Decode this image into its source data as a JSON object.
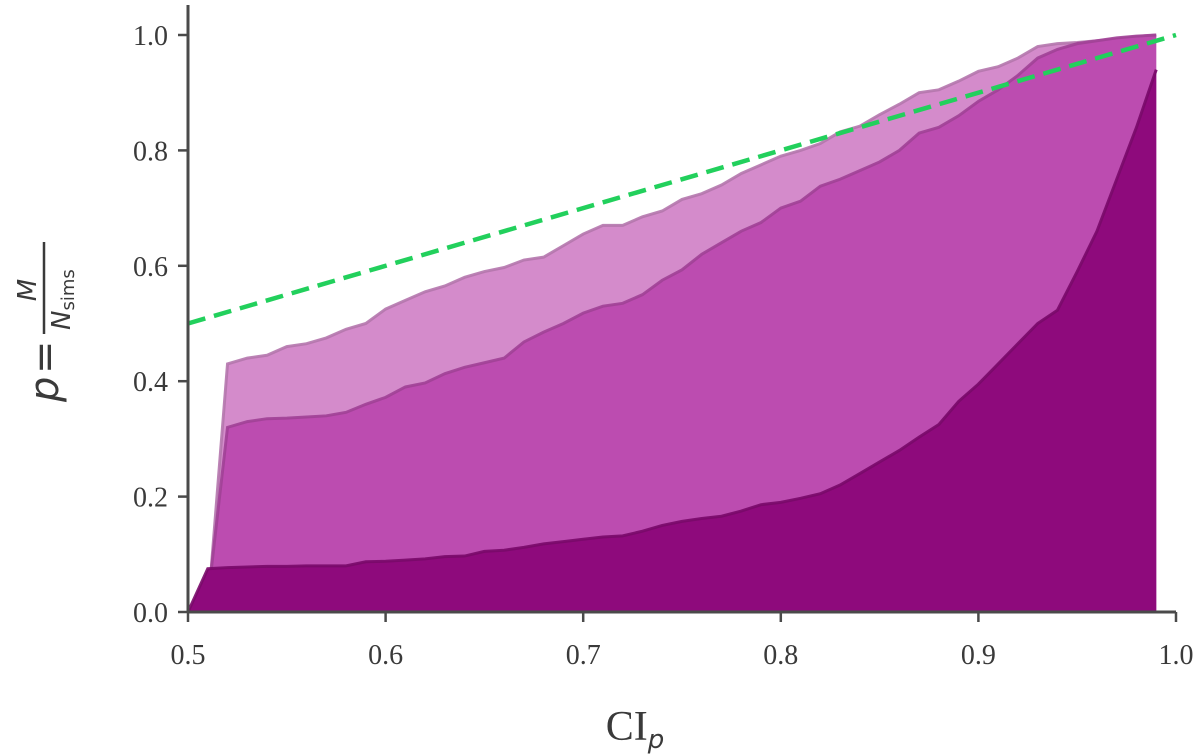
{
  "chart_data": {
    "type": "area",
    "xlabel": "CI",
    "xlabel_subscript": "p",
    "ylabel": {
      "lhs": "p",
      "equals": "=",
      "numerator": "M",
      "denominator": "N",
      "denominator_subscript": "sims"
    },
    "xlim": [
      0.5,
      1.0
    ],
    "ylim": [
      0.0,
      1.0
    ],
    "x_ticks": [
      "0.5",
      "0.6",
      "0.7",
      "0.8",
      "0.9",
      "1.0"
    ],
    "y_ticks": [
      "0.0",
      "0.2",
      "0.4",
      "0.6",
      "0.8",
      "1.0"
    ],
    "grid": false,
    "series": [
      {
        "color": "#d48bcb",
        "opacity": 1,
        "x": [
          0.51,
          0.52,
          0.53,
          0.54,
          0.55,
          0.56,
          0.57,
          0.58,
          0.59,
          0.6,
          0.61,
          0.62,
          0.63,
          0.64,
          0.65,
          0.66,
          0.67,
          0.68,
          0.69,
          0.7,
          0.71,
          0.72,
          0.73,
          0.74,
          0.75,
          0.76,
          0.77,
          0.78,
          0.79,
          0.8,
          0.81,
          0.82,
          0.83,
          0.84,
          0.85,
          0.86,
          0.87,
          0.88,
          0.89,
          0.9,
          0.91,
          0.92,
          0.93,
          0.94,
          0.95,
          0.96,
          0.97,
          0.98,
          0.99
        ],
        "y": [
          0.0,
          0.43,
          0.44,
          0.445,
          0.46,
          0.465,
          0.475,
          0.49,
          0.5,
          0.525,
          0.54,
          0.555,
          0.565,
          0.58,
          0.59,
          0.597,
          0.61,
          0.615,
          0.635,
          0.655,
          0.67,
          0.67,
          0.685,
          0.695,
          0.715,
          0.725,
          0.74,
          0.76,
          0.775,
          0.79,
          0.8,
          0.812,
          0.832,
          0.842,
          0.862,
          0.88,
          0.9,
          0.905,
          0.92,
          0.937,
          0.945,
          0.96,
          0.98,
          0.985,
          0.987,
          0.99,
          0.993,
          0.997,
          1.0
        ]
      },
      {
        "color": "#bc4cb0",
        "opacity": 1,
        "x": [
          0.5,
          0.51,
          0.52,
          0.53,
          0.54,
          0.55,
          0.56,
          0.57,
          0.58,
          0.59,
          0.6,
          0.61,
          0.62,
          0.63,
          0.64,
          0.65,
          0.66,
          0.67,
          0.68,
          0.69,
          0.7,
          0.71,
          0.72,
          0.73,
          0.74,
          0.75,
          0.76,
          0.77,
          0.78,
          0.79,
          0.8,
          0.81,
          0.82,
          0.83,
          0.84,
          0.85,
          0.86,
          0.87,
          0.88,
          0.89,
          0.9,
          0.91,
          0.92,
          0.93,
          0.94,
          0.95,
          0.96,
          0.97,
          0.98,
          0.99
        ],
        "y": [
          0.0,
          0.02,
          0.32,
          0.33,
          0.335,
          0.336,
          0.338,
          0.34,
          0.346,
          0.36,
          0.372,
          0.39,
          0.397,
          0.413,
          0.424,
          0.432,
          0.44,
          0.468,
          0.485,
          0.5,
          0.518,
          0.53,
          0.535,
          0.55,
          0.575,
          0.593,
          0.62,
          0.64,
          0.66,
          0.675,
          0.7,
          0.712,
          0.738,
          0.75,
          0.765,
          0.78,
          0.8,
          0.83,
          0.84,
          0.86,
          0.885,
          0.905,
          0.93,
          0.96,
          0.975,
          0.985,
          0.99,
          0.995,
          0.998,
          1.0
        ]
      },
      {
        "color": "#8e0a7c",
        "opacity": 1,
        "x": [
          0.5,
          0.51,
          0.52,
          0.53,
          0.54,
          0.55,
          0.56,
          0.57,
          0.58,
          0.59,
          0.6,
          0.61,
          0.62,
          0.63,
          0.64,
          0.65,
          0.66,
          0.67,
          0.68,
          0.69,
          0.7,
          0.71,
          0.72,
          0.73,
          0.74,
          0.75,
          0.76,
          0.77,
          0.78,
          0.79,
          0.8,
          0.81,
          0.82,
          0.83,
          0.84,
          0.85,
          0.86,
          0.87,
          0.88,
          0.89,
          0.9,
          0.91,
          0.92,
          0.93,
          0.94,
          0.95,
          0.96,
          0.97,
          0.98,
          0.99
        ],
        "y": [
          0.0,
          0.075,
          0.077,
          0.078,
          0.079,
          0.079,
          0.08,
          0.08,
          0.08,
          0.087,
          0.088,
          0.09,
          0.092,
          0.096,
          0.097,
          0.105,
          0.107,
          0.112,
          0.118,
          0.122,
          0.126,
          0.13,
          0.132,
          0.14,
          0.15,
          0.157,
          0.162,
          0.166,
          0.175,
          0.186,
          0.19,
          0.197,
          0.205,
          0.22,
          0.24,
          0.26,
          0.28,
          0.303,
          0.325,
          0.365,
          0.395,
          0.43,
          0.465,
          0.5,
          0.523,
          0.59,
          0.66,
          0.75,
          0.84,
          0.94
        ]
      }
    ],
    "reference_line": {
      "color": "#22d05c",
      "style": "dashed",
      "x": [
        0.5,
        1.0
      ],
      "y": [
        0.5,
        1.0
      ]
    }
  }
}
